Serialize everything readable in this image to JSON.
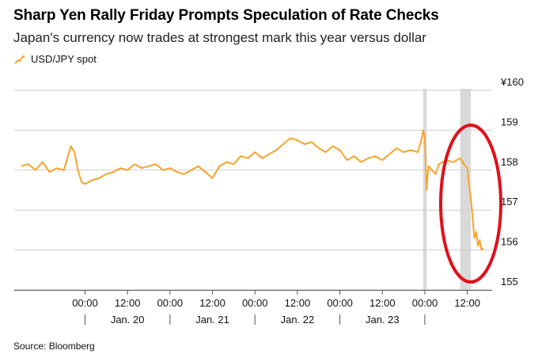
{
  "header": {
    "title": "Sharp Yen Rally Friday Prompts Speculation of Rate Checks",
    "subtitle": "Japan's currency now trades at strongest mark this year versus dollar"
  },
  "legend": {
    "label": "USD/JPY spot",
    "color": "#f7a32c"
  },
  "source": "Source: Bloomberg",
  "annotation": {
    "type": "circle",
    "color": "#e0101a"
  },
  "chart_data": {
    "type": "line",
    "title": "Sharp Yen Rally Friday Prompts Speculation of Rate Checks",
    "series": [
      {
        "name": "USD/JPY spot",
        "color": "#f7a32c",
        "points": [
          [
            -18,
            158.1
          ],
          [
            -16,
            158.15
          ],
          [
            -14,
            158.0
          ],
          [
            -12,
            158.2
          ],
          [
            -10,
            157.95
          ],
          [
            -8,
            158.05
          ],
          [
            -6,
            158.0
          ],
          [
            -5,
            158.3
          ],
          [
            -4,
            158.6
          ],
          [
            -3,
            158.45
          ],
          [
            -2,
            158.0
          ],
          [
            -1,
            157.7
          ],
          [
            0,
            157.65
          ],
          [
            2,
            157.75
          ],
          [
            4,
            157.8
          ],
          [
            6,
            157.9
          ],
          [
            8,
            157.95
          ],
          [
            10,
            158.05
          ],
          [
            12,
            158.0
          ],
          [
            14,
            158.15
          ],
          [
            16,
            158.05
          ],
          [
            18,
            158.1
          ],
          [
            20,
            158.15
          ],
          [
            22,
            158.0
          ],
          [
            24,
            158.05
          ],
          [
            26,
            157.95
          ],
          [
            28,
            157.9
          ],
          [
            30,
            158.0
          ],
          [
            32,
            158.1
          ],
          [
            34,
            157.95
          ],
          [
            36,
            157.8
          ],
          [
            38,
            158.1
          ],
          [
            40,
            158.2
          ],
          [
            42,
            158.15
          ],
          [
            44,
            158.35
          ],
          [
            46,
            158.3
          ],
          [
            48,
            158.45
          ],
          [
            50,
            158.3
          ],
          [
            52,
            158.4
          ],
          [
            54,
            158.5
          ],
          [
            56,
            158.65
          ],
          [
            58,
            158.8
          ],
          [
            60,
            158.75
          ],
          [
            62,
            158.65
          ],
          [
            64,
            158.7
          ],
          [
            66,
            158.55
          ],
          [
            68,
            158.45
          ],
          [
            70,
            158.6
          ],
          [
            72,
            158.5
          ],
          [
            74,
            158.25
          ],
          [
            76,
            158.35
          ],
          [
            78,
            158.2
          ],
          [
            80,
            158.3
          ],
          [
            82,
            158.35
          ],
          [
            84,
            158.25
          ],
          [
            86,
            158.4
          ],
          [
            88,
            158.55
          ],
          [
            90,
            158.45
          ],
          [
            92,
            158.5
          ],
          [
            94,
            158.45
          ],
          [
            95,
            158.75
          ],
          [
            95.5,
            159.0
          ],
          [
            96,
            158.8
          ],
          [
            96.5,
            157.5
          ],
          [
            97,
            158.1
          ],
          [
            98,
            158.0
          ],
          [
            99,
            157.9
          ],
          [
            100,
            158.15
          ],
          [
            102,
            158.25
          ],
          [
            104,
            158.2
          ],
          [
            106,
            158.3
          ],
          [
            107,
            158.15
          ],
          [
            108,
            158.05
          ],
          [
            108.5,
            157.6
          ],
          [
            109,
            157.3
          ],
          [
            109.5,
            156.8
          ],
          [
            110,
            156.3
          ],
          [
            110.5,
            156.45
          ],
          [
            111,
            156.1
          ],
          [
            111.5,
            156.25
          ],
          [
            112,
            156.0
          ],
          [
            112.5,
            156.05
          ]
        ]
      }
    ],
    "ylim": [
      155,
      160
    ],
    "yticks": [
      155,
      156,
      157,
      158,
      159,
      160
    ],
    "ytick_labels": [
      "155",
      "156",
      "157",
      "158",
      "159",
      "¥160"
    ],
    "xlim": [
      -20,
      115
    ],
    "x_unit": "hours since Jan. 20 00:00",
    "xticks": [
      0,
      12,
      24,
      36,
      48,
      60,
      72,
      84,
      96,
      108
    ],
    "xtick_labels": [
      "00:00",
      "12:00",
      "00:00",
      "12:00",
      "00:00",
      "12:00",
      "00:00",
      "12:00",
      "00:00",
      "12:00"
    ],
    "day_labels": [
      {
        "x": 12,
        "label": "Jan. 20"
      },
      {
        "x": 36,
        "label": "Jan. 21"
      },
      {
        "x": 60,
        "label": "Jan. 22"
      },
      {
        "x": 84,
        "label": "Jan. 23"
      }
    ],
    "day_separators": [
      0,
      24,
      48,
      72,
      96
    ],
    "shaded_regions": [
      [
        95.5,
        96.5
      ],
      [
        106,
        109
      ]
    ],
    "grid": true
  }
}
